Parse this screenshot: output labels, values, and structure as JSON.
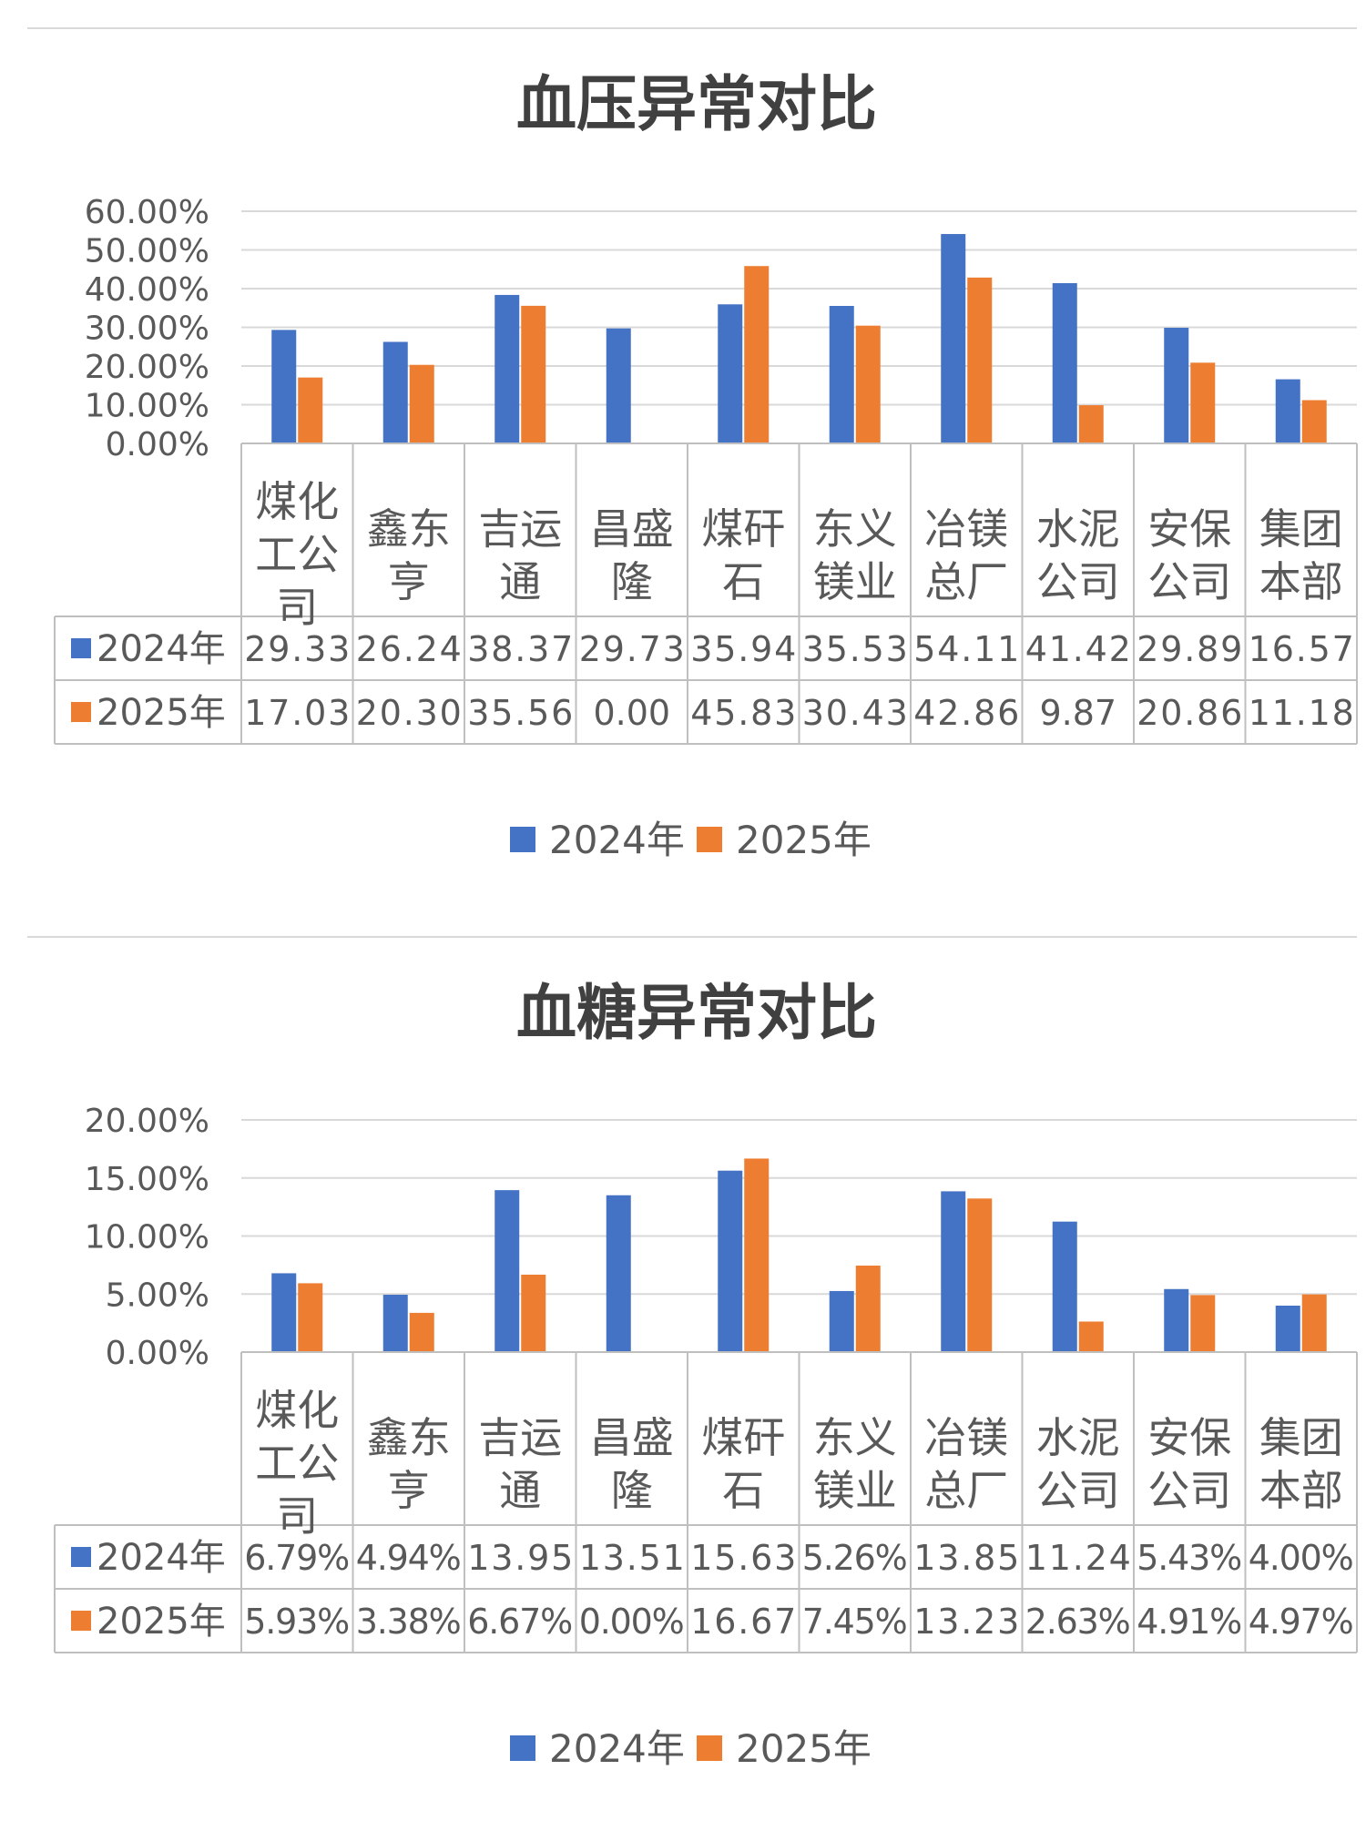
{
  "chart_data": [
    {
      "type": "bar",
      "title": "血压异常对比",
      "categories": [
        [
          "煤化",
          "工公",
          "司"
        ],
        [
          "鑫东",
          "亨"
        ],
        [
          "吉运",
          "通"
        ],
        [
          "昌盛",
          "隆"
        ],
        [
          "煤矸",
          "石"
        ],
        [
          "东义",
          "镁业"
        ],
        [
          "冶镁",
          "总厂"
        ],
        [
          "水泥",
          "公司"
        ],
        [
          "安保",
          "公司"
        ],
        [
          "集团",
          "本部"
        ]
      ],
      "series": [
        {
          "name": "2024年",
          "color": "#4472C4",
          "values": [
            29.33,
            26.24,
            38.37,
            29.73,
            35.94,
            35.53,
            54.11,
            41.42,
            29.89,
            16.57
          ],
          "table_labels": [
            "29.33",
            "26.24",
            "38.37",
            "29.73",
            "35.94",
            "35.53",
            "54.11",
            "41.42",
            "29.89",
            "16.57"
          ]
        },
        {
          "name": "2025年",
          "color": "#ED7D31",
          "values": [
            17.03,
            20.3,
            35.56,
            0.0,
            45.83,
            30.43,
            42.86,
            9.87,
            20.86,
            11.18
          ],
          "table_labels": [
            "17.03",
            "20.30",
            "35.56",
            "0.00",
            "45.83",
            "30.43",
            "42.86",
            "9.87",
            "20.86",
            "11.18"
          ]
        }
      ],
      "ylim": [
        0,
        60
      ],
      "yticks": [
        "0.00%",
        "10.00%",
        "20.00%",
        "30.00%",
        "40.00%",
        "50.00%",
        "60.00%"
      ],
      "grid": true,
      "legend": "bottom"
    },
    {
      "type": "bar",
      "title": "血糖异常对比",
      "categories": [
        [
          "煤化",
          "工公",
          "司"
        ],
        [
          "鑫东",
          "亨"
        ],
        [
          "吉运",
          "通"
        ],
        [
          "昌盛",
          "隆"
        ],
        [
          "煤矸",
          "石"
        ],
        [
          "东义",
          "镁业"
        ],
        [
          "冶镁",
          "总厂"
        ],
        [
          "水泥",
          "公司"
        ],
        [
          "安保",
          "公司"
        ],
        [
          "集团",
          "本部"
        ]
      ],
      "series": [
        {
          "name": "2024年",
          "color": "#4472C4",
          "values": [
            6.79,
            4.94,
            13.95,
            13.51,
            15.63,
            5.26,
            13.85,
            11.24,
            5.43,
            4.0
          ],
          "table_labels": [
            "6.79%",
            "4.94%",
            "13.95",
            "13.51",
            "15.63",
            "5.26%",
            "13.85",
            "11.24",
            "5.43%",
            "4.00%"
          ]
        },
        {
          "name": "2025年",
          "color": "#ED7D31",
          "values": [
            5.93,
            3.38,
            6.67,
            0.0,
            16.67,
            7.45,
            13.23,
            2.63,
            4.91,
            4.97
          ],
          "table_labels": [
            "5.93%",
            "3.38%",
            "6.67%",
            "0.00%",
            "16.67",
            "7.45%",
            "13.23",
            "2.63%",
            "4.91%",
            "4.97%"
          ]
        }
      ],
      "ylim": [
        0,
        20
      ],
      "yticks": [
        "0.00%",
        "5.00%",
        "10.00%",
        "15.00%",
        "20.00%"
      ],
      "grid": true,
      "legend": "bottom"
    }
  ]
}
